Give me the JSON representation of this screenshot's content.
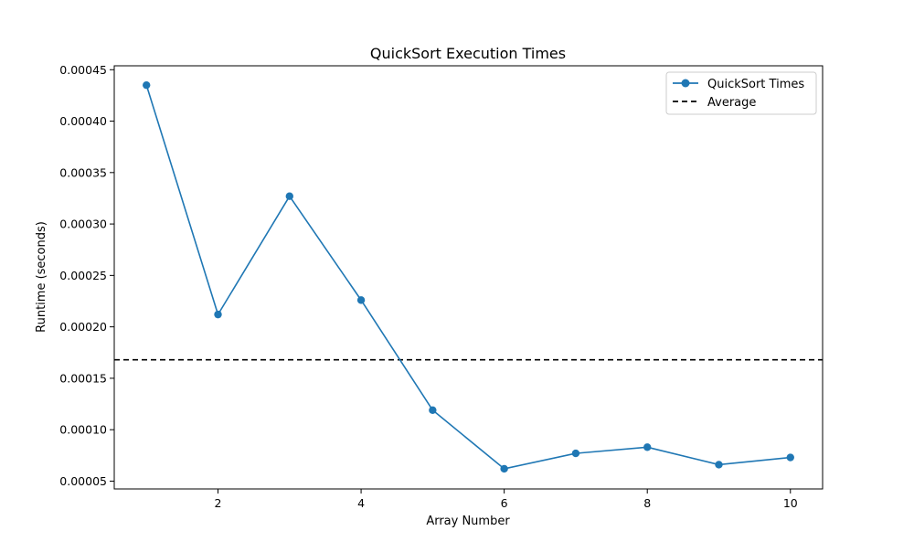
{
  "chart_data": {
    "type": "line",
    "title": "QuickSort Execution Times",
    "xlabel": "Array Number",
    "ylabel": "Runtime (seconds)",
    "xlim": [
      0.55,
      10.45
    ],
    "ylim": [
      4.24e-05,
      0.0004538
    ],
    "x_ticks": [
      2,
      4,
      6,
      8,
      10
    ],
    "x_tick_labels": [
      "2",
      "4",
      "6",
      "8",
      "10"
    ],
    "y_ticks": [
      5e-05,
      0.0001,
      0.00015,
      0.0002,
      0.00025,
      0.0003,
      0.00035,
      0.0004,
      0.00045
    ],
    "y_tick_labels": [
      "0.00005",
      "0.00010",
      "0.00015",
      "0.00020",
      "0.00025",
      "0.00030",
      "0.00035",
      "0.00040",
      "0.00045"
    ],
    "grid": false,
    "legend_position": "top-right",
    "series": [
      {
        "name": "QuickSort Times",
        "color": "#1f77b4",
        "marker": "circle",
        "x": [
          1,
          2,
          3,
          4,
          5,
          6,
          7,
          8,
          9,
          10
        ],
        "values": [
          0.000435,
          0.000212,
          0.000327,
          0.000226,
          0.000119,
          6.2e-05,
          7.7e-05,
          8.3e-05,
          6.6e-05,
          7.3e-05
        ]
      }
    ],
    "reference_lines": [
      {
        "name": "Average",
        "orientation": "horizontal",
        "value": 0.000168,
        "color": "#000000",
        "style": "dashed"
      }
    ]
  }
}
